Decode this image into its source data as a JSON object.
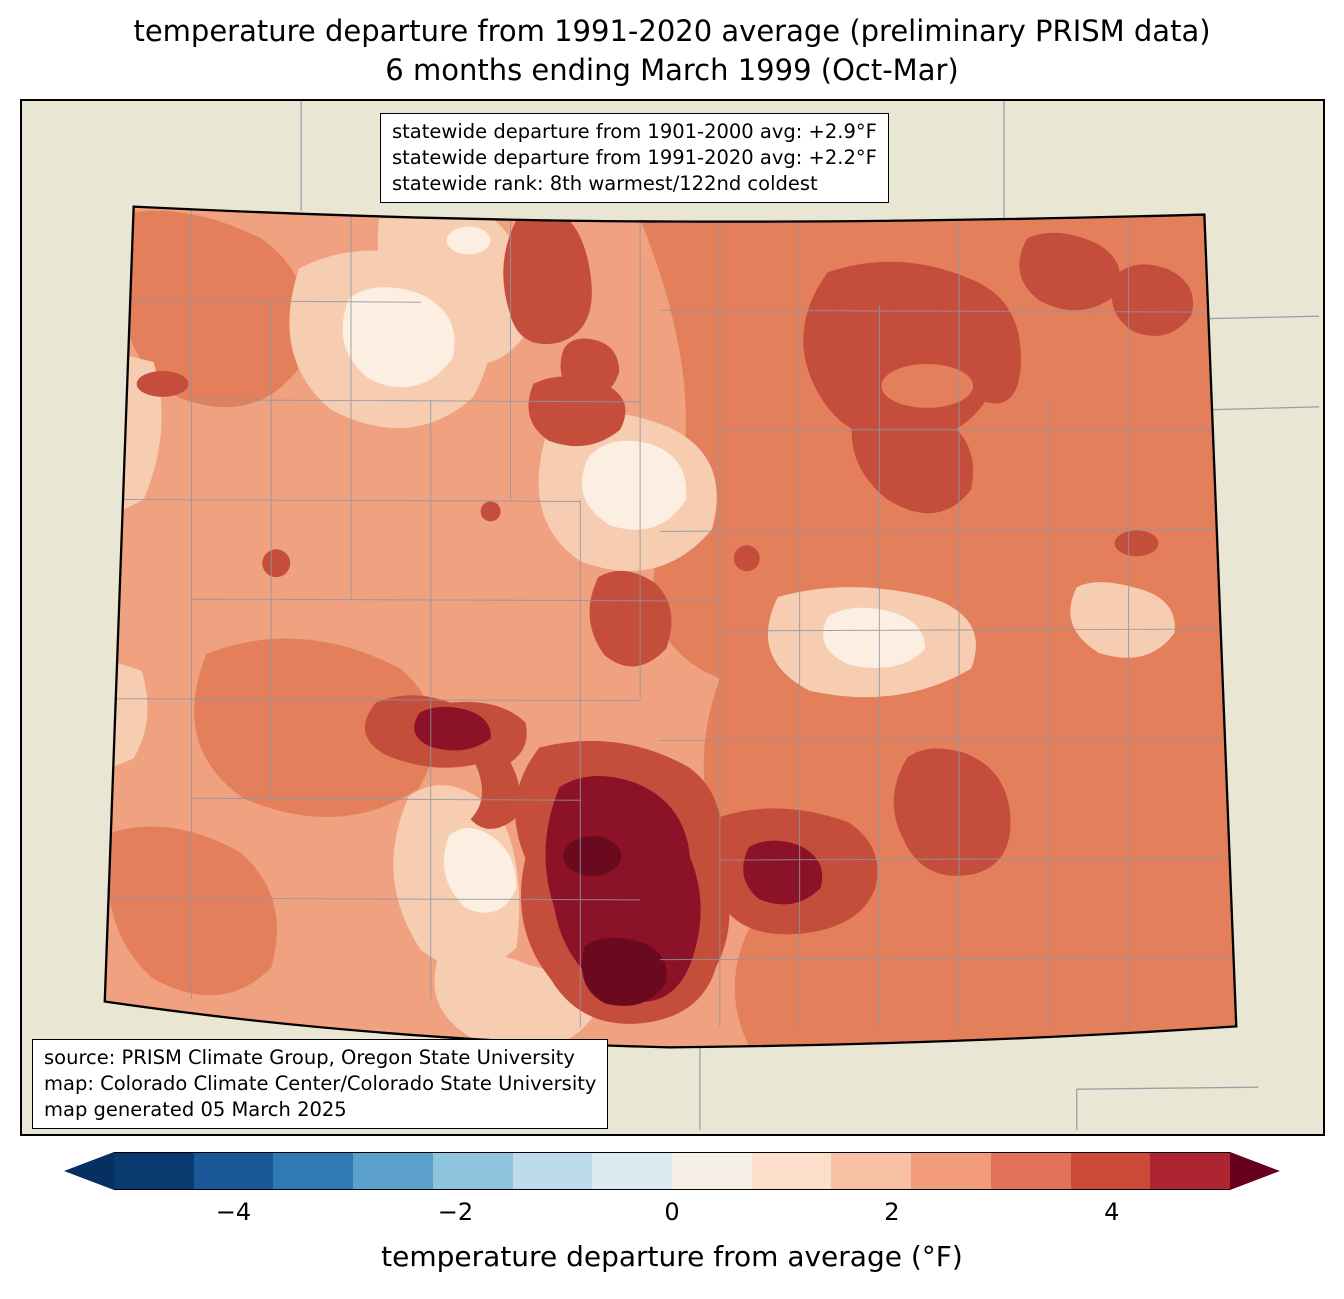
{
  "title": {
    "line1": "temperature departure from 1991-2020 average (preliminary PRISM data)",
    "line2": "6 months ending March 1999 (Oct-Mar)"
  },
  "stats_box": {
    "line1": "statewide departure from 1901-2000 avg: +2.9°F",
    "line2": "statewide departure from 1991-2020 avg: +2.2°F",
    "line3": "statewide rank: 8th warmest/122nd coldest"
  },
  "source_box": {
    "line1": "source: PRISM Climate Group, Oregon State University",
    "line2": "map: Colorado Climate Center/Colorado State University",
    "line3": "map generated 05 March 2025"
  },
  "colorbar": {
    "label": "temperature departure from average (°F)",
    "ticks": [
      "−4",
      "−2",
      "0",
      "2",
      "4"
    ],
    "range": [
      -5.25,
      5.25
    ],
    "segment_colors": [
      "#0a3b70",
      "#1b5899",
      "#2f79b5",
      "#5ba0cb",
      "#8ec4dc",
      "#bcdaea",
      "#dce9f1",
      "#f6efe8",
      "#fbdfca",
      "#f8c0a4",
      "#f29c7b",
      "#e27257",
      "#cc4a38",
      "#ac2530"
    ],
    "arrow_left_color": "#053061",
    "arrow_right_color": "#67001f"
  },
  "map": {
    "region": "Colorado",
    "palette": {
      "background": "#e9e6d4",
      "state_base": "#f0a17f",
      "medium": "#e47f5c",
      "light": "#f7cdb2",
      "lightest": "#fceee1",
      "dark": "#c44e3b",
      "darkest": "#8c1227",
      "deepest": "#6b0a1f",
      "county_line": "#8d97a2",
      "neighbor_line": "#99a1a8",
      "state_border": "#000000"
    }
  }
}
